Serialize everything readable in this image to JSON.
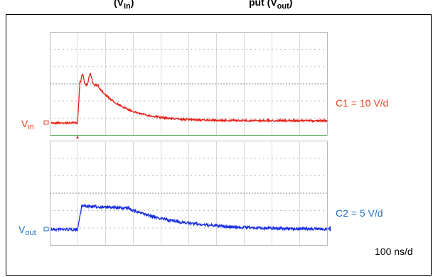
{
  "header": {
    "left": {
      "main": "(V",
      "sub": "in",
      "end": ")"
    },
    "right": {
      "main": "put (V",
      "sub": "out",
      "end": ")"
    }
  },
  "channels": [
    {
      "label": {
        "main": "V",
        "sub": "in"
      },
      "scale": "C1 = 10 V/d"
    },
    {
      "label": {
        "main": "V",
        "sub": "out"
      },
      "scale": "C2 = 5 V/d"
    }
  ],
  "timebase": "100 ns/d"
}
